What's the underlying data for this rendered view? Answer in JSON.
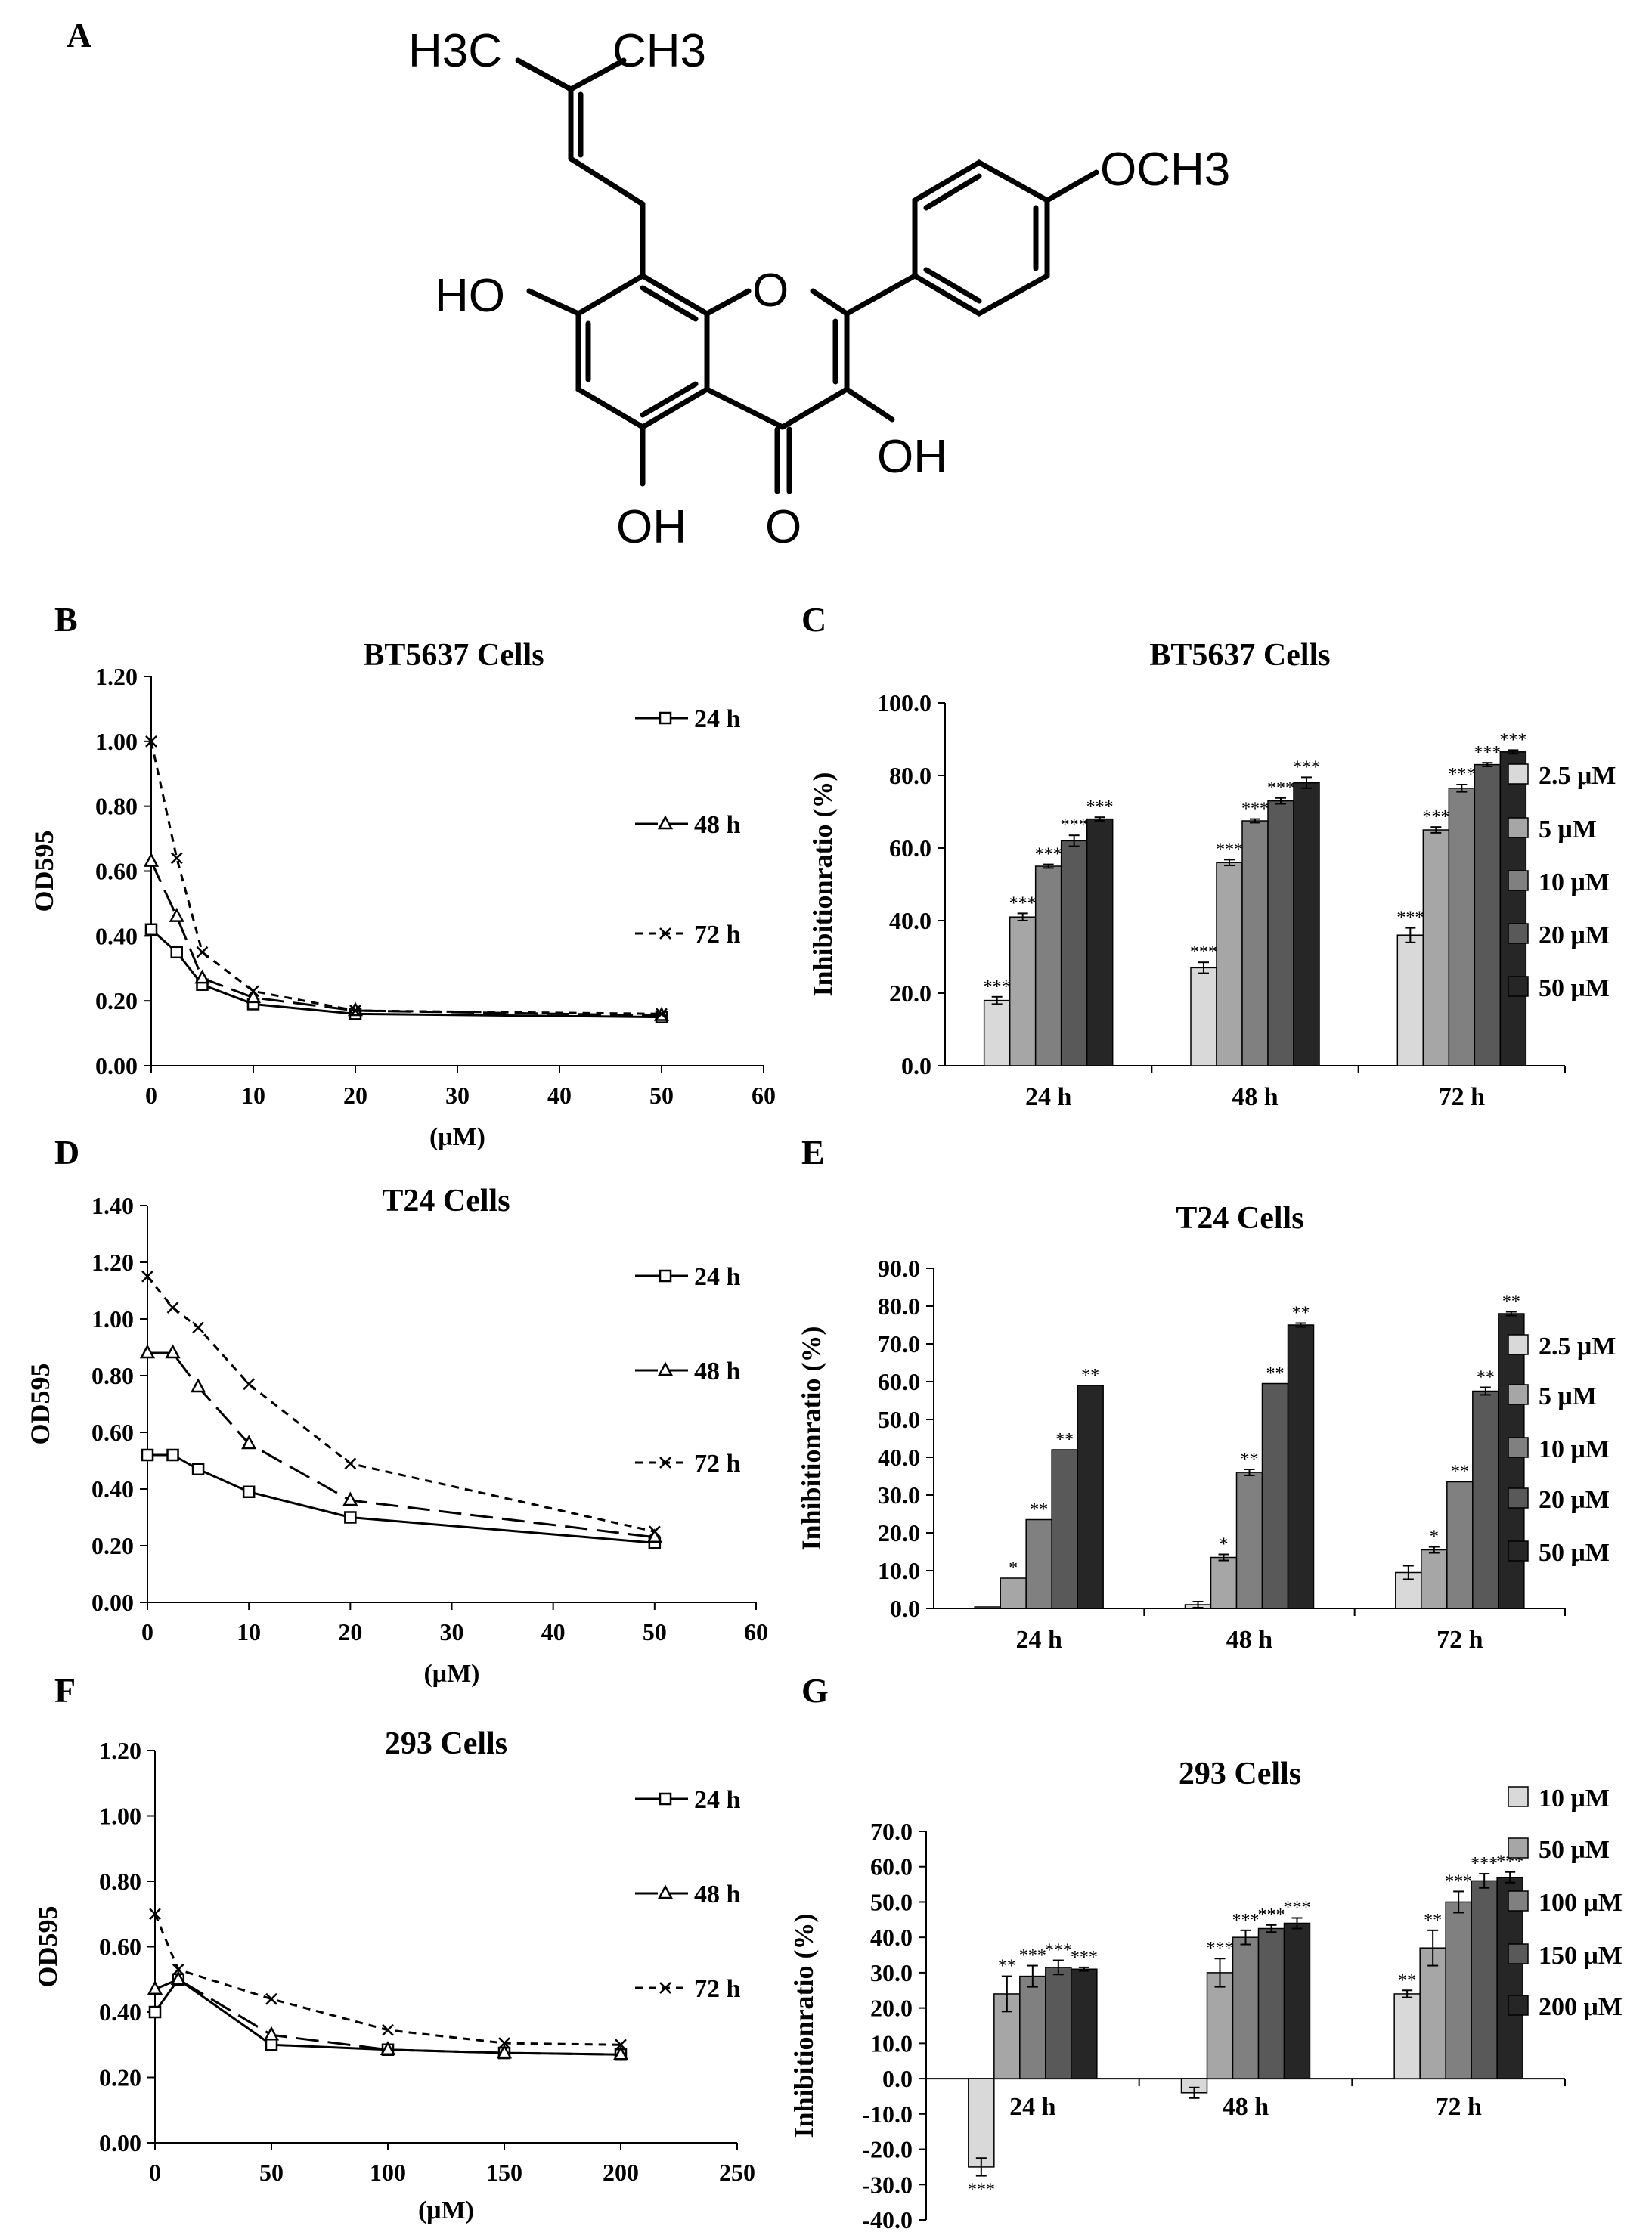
{
  "panel_labels": [
    "A",
    "B",
    "C",
    "D",
    "E",
    "F",
    "G"
  ],
  "structure": {
    "atom_labels": [
      "H3C",
      "CH3",
      "OCH3",
      "HO",
      "O",
      "OH",
      "OH",
      "O"
    ]
  },
  "chart_data": [
    {
      "id": "B",
      "type": "line",
      "title": "BT5637 Cells",
      "xlabel": "(μM)",
      "ylabel": "OD595",
      "xlim": [
        0,
        60
      ],
      "xticks": [
        0,
        10,
        20,
        30,
        40,
        50,
        60
      ],
      "ylim": [
        0,
        1.2
      ],
      "yticks": [
        "0.00",
        "0.20",
        "0.40",
        "0.60",
        "0.80",
        "1.00",
        "1.20"
      ],
      "series": [
        {
          "name": "24 h",
          "marker": "square",
          "dash": "solid",
          "x": [
            0,
            2.5,
            5,
            10,
            20,
            50
          ],
          "y": [
            0.42,
            0.35,
            0.25,
            0.19,
            0.16,
            0.15
          ]
        },
        {
          "name": "48 h",
          "marker": "triangle",
          "dash": "long",
          "x": [
            0,
            2.5,
            5,
            10,
            20,
            50
          ],
          "y": [
            0.63,
            0.46,
            0.27,
            0.21,
            0.17,
            0.155
          ]
        },
        {
          "name": "72 h",
          "marker": "x",
          "dash": "short",
          "x": [
            0,
            2.5,
            5,
            10,
            20,
            50
          ],
          "y": [
            1.0,
            0.64,
            0.35,
            0.23,
            0.17,
            0.16
          ]
        }
      ]
    },
    {
      "id": "C",
      "type": "bar",
      "title": "BT5637 Cells",
      "ylabel": "Inhibitionratio (%)",
      "categories": [
        "24 h",
        "48 h",
        "72 h"
      ],
      "ylim": [
        0,
        100
      ],
      "yticks": [
        "0.0",
        "20.0",
        "40.0",
        "60.0",
        "80.0",
        "100.0"
      ],
      "series": [
        {
          "name": "2.5 μM",
          "color": "#d9d9d9",
          "values": [
            18,
            27,
            36
          ],
          "err": [
            1,
            1.5,
            2
          ],
          "sig": [
            "***",
            "***",
            "***"
          ]
        },
        {
          "name": "5 μM",
          "color": "#a6a6a6",
          "values": [
            41,
            56,
            65
          ],
          "err": [
            1,
            0.8,
            0.8
          ],
          "sig": [
            "***",
            "***",
            "***"
          ]
        },
        {
          "name": "10 μM",
          "color": "#808080",
          "values": [
            55,
            67.5,
            76.5
          ],
          "err": [
            0.5,
            0.5,
            1
          ],
          "sig": [
            "***",
            "***",
            "***"
          ]
        },
        {
          "name": "20 μM",
          "color": "#595959",
          "values": [
            62,
            73,
            83
          ],
          "err": [
            1.5,
            0.8,
            0.5
          ],
          "sig": [
            "***",
            "***",
            "***"
          ]
        },
        {
          "name": "50 μM",
          "color": "#262626",
          "values": [
            68,
            78,
            86.5
          ],
          "err": [
            0.5,
            1.5,
            0.5
          ],
          "sig": [
            "***",
            "***",
            "***"
          ]
        }
      ]
    },
    {
      "id": "D",
      "type": "line",
      "title": "T24 Cells",
      "xlabel": "(μM)",
      "ylabel": "OD595",
      "xlim": [
        0,
        60
      ],
      "xticks": [
        0,
        10,
        20,
        30,
        40,
        50,
        60
      ],
      "ylim": [
        0,
        1.4
      ],
      "yticks": [
        "0.00",
        "0.20",
        "0.40",
        "0.60",
        "0.80",
        "1.00",
        "1.20",
        "1.40"
      ],
      "series": [
        {
          "name": "24 h",
          "marker": "square",
          "dash": "solid",
          "x": [
            0,
            2.5,
            5,
            10,
            20,
            50
          ],
          "y": [
            0.52,
            0.52,
            0.47,
            0.39,
            0.3,
            0.21
          ]
        },
        {
          "name": "48 h",
          "marker": "triangle",
          "dash": "long",
          "x": [
            0,
            2.5,
            5,
            10,
            20,
            50
          ],
          "y": [
            0.88,
            0.88,
            0.76,
            0.56,
            0.36,
            0.23
          ]
        },
        {
          "name": "72 h",
          "marker": "x",
          "dash": "short",
          "x": [
            0,
            2.5,
            5,
            10,
            20,
            50
          ],
          "y": [
            1.15,
            1.04,
            0.97,
            0.77,
            0.49,
            0.25
          ]
        }
      ]
    },
    {
      "id": "E",
      "type": "bar",
      "title": "T24 Cells",
      "ylabel": "Inhibitionratio (%)",
      "categories": [
        "24 h",
        "48 h",
        "72 h"
      ],
      "ylim": [
        0,
        90
      ],
      "yticks": [
        "0.0",
        "10.0",
        "20.0",
        "30.0",
        "40.0",
        "50.0",
        "60.0",
        "70.0",
        "80.0",
        "90.0"
      ],
      "series": [
        {
          "name": "2.5 μM",
          "color": "#d9d9d9",
          "values": [
            0.4,
            1,
            9.5
          ],
          "err": [
            0,
            0.8,
            1.8
          ],
          "sig": [
            "",
            "",
            ""
          ]
        },
        {
          "name": "5 μM",
          "color": "#a6a6a6",
          "values": [
            8,
            13.5,
            15.5
          ],
          "err": [
            0,
            0.8,
            0.8
          ],
          "sig": [
            "*",
            "*",
            "*"
          ]
        },
        {
          "name": "10 μM",
          "color": "#808080",
          "values": [
            23.5,
            36,
            33.5
          ],
          "err": [
            0,
            0.8,
            0
          ],
          "sig": [
            "**",
            "**",
            "**"
          ]
        },
        {
          "name": "20 μM",
          "color": "#595959",
          "values": [
            42,
            59.5,
            57.5
          ],
          "err": [
            0,
            0,
            1
          ],
          "sig": [
            "**",
            "**",
            "**"
          ]
        },
        {
          "name": "50 μM",
          "color": "#262626",
          "values": [
            59,
            75,
            78
          ],
          "err": [
            0,
            0.5,
            0.5
          ],
          "sig": [
            "**",
            "**",
            "**"
          ]
        }
      ]
    },
    {
      "id": "F",
      "type": "line",
      "title": "293 Cells",
      "xlabel": "(μM)",
      "ylabel": "OD595",
      "xlim": [
        0,
        250
      ],
      "xticks": [
        0,
        50,
        100,
        150,
        200,
        250
      ],
      "ylim": [
        0,
        1.2
      ],
      "yticks": [
        "0.00",
        "0.20",
        "0.40",
        "0.60",
        "0.80",
        "1.00",
        "1.20"
      ],
      "series": [
        {
          "name": "24 h",
          "marker": "square",
          "dash": "solid",
          "x": [
            0,
            10,
            50,
            100,
            150,
            200
          ],
          "y": [
            0.4,
            0.5,
            0.3,
            0.285,
            0.275,
            0.27
          ]
        },
        {
          "name": "48 h",
          "marker": "triangle",
          "dash": "long",
          "x": [
            0,
            10,
            50,
            100,
            150,
            200
          ],
          "y": [
            0.47,
            0.5,
            0.33,
            0.285,
            0.275,
            0.27
          ]
        },
        {
          "name": "72 h",
          "marker": "x",
          "dash": "short",
          "x": [
            0,
            10,
            50,
            100,
            150,
            200
          ],
          "y": [
            0.7,
            0.53,
            0.44,
            0.345,
            0.305,
            0.3
          ]
        }
      ]
    },
    {
      "id": "G",
      "type": "bar",
      "title": "293 Cells",
      "ylabel": "Inhibitionratio (%)",
      "categories": [
        "24 h",
        "48 h",
        "72 h"
      ],
      "ylim": [
        -40,
        70
      ],
      "yticks": [
        "-40.0",
        "-30.0",
        "-20.0",
        "-10.0",
        "0.0",
        "10.0",
        "20.0",
        "30.0",
        "40.0",
        "50.0",
        "60.0",
        "70.0"
      ],
      "series": [
        {
          "name": "10 μM",
          "color": "#d9d9d9",
          "values": [
            -25,
            -4,
            24
          ],
          "err": [
            2.5,
            1.5,
            1
          ],
          "sig": [
            "***",
            "",
            "**"
          ]
        },
        {
          "name": "50 μM",
          "color": "#a6a6a6",
          "values": [
            24,
            30,
            37
          ],
          "err": [
            5,
            4,
            5
          ],
          "sig": [
            "**",
            "***",
            "**"
          ]
        },
        {
          "name": "100 μM",
          "color": "#808080",
          "values": [
            29,
            40,
            50
          ],
          "err": [
            3,
            2,
            3
          ],
          "sig": [
            "***",
            "***",
            "***"
          ]
        },
        {
          "name": "150 μM",
          "color": "#595959",
          "values": [
            31.5,
            42.5,
            56
          ],
          "err": [
            2,
            1,
            2
          ],
          "sig": [
            "***",
            "***",
            "***"
          ]
        },
        {
          "name": "200 μM",
          "color": "#262626",
          "values": [
            31,
            44,
            57
          ],
          "err": [
            0.5,
            1.5,
            1.5
          ],
          "sig": [
            "***",
            "***",
            "***"
          ]
        }
      ]
    }
  ]
}
